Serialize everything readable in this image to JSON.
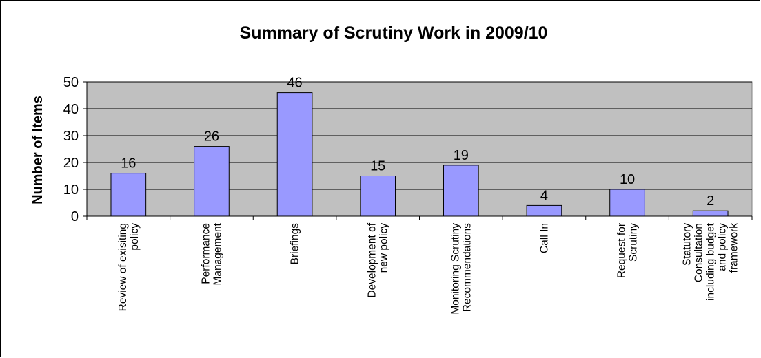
{
  "chart_data": {
    "type": "bar",
    "title": "Summary of Scrutiny Work in 2009/10",
    "xlabel": "",
    "ylabel": "Number of Items",
    "ylim": [
      0,
      50
    ],
    "yticks": [
      0,
      10,
      20,
      30,
      40,
      50
    ],
    "grid": true,
    "legend": "none",
    "categories": [
      [
        "Review of exisiting",
        "policy"
      ],
      [
        "Performance",
        "Management"
      ],
      [
        "Briefings"
      ],
      [
        "Development of",
        "new policy"
      ],
      [
        "Monitoring Scrutiny",
        "Recommendations"
      ],
      [
        "Call In"
      ],
      [
        "Request for",
        "Scrutiny"
      ],
      [
        "Statutory",
        "Consultation",
        "including budget",
        "and policy",
        "framework"
      ]
    ],
    "values": [
      16,
      26,
      46,
      15,
      19,
      4,
      10,
      2
    ],
    "data_labels": [
      "16",
      "26",
      "46",
      "15",
      "19",
      "4",
      "10",
      "2"
    ],
    "colors": {
      "plot_background": "#c0c0c0",
      "bar_fill": "#9999ff",
      "bar_stroke": "#000000",
      "gridline": "#000000"
    }
  }
}
